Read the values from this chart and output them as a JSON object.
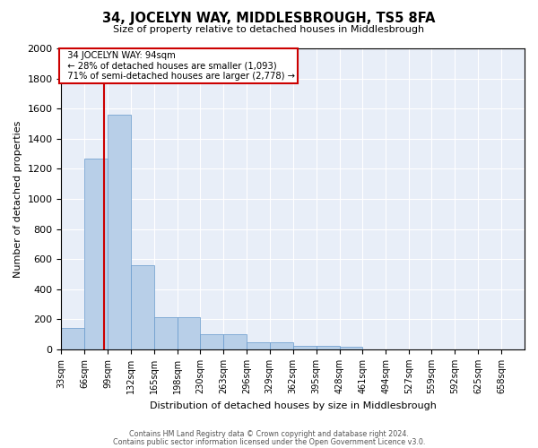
{
  "title": "34, JOCELYN WAY, MIDDLESBROUGH, TS5 8FA",
  "subtitle": "Size of property relative to detached houses in Middlesbrough",
  "xlabel": "Distribution of detached houses by size in Middlesbrough",
  "ylabel": "Number of detached properties",
  "footnote1": "Contains HM Land Registry data © Crown copyright and database right 2024.",
  "footnote2": "Contains public sector information licensed under the Open Government Licence v3.0.",
  "property_size": 94,
  "property_label": "34 JOCELYN WAY: 94sqm",
  "annotation_line1": "← 28% of detached houses are smaller (1,093)",
  "annotation_line2": "71% of semi-detached houses are larger (2,778) →",
  "bin_edges": [
    33,
    66,
    99,
    132,
    165,
    198,
    230,
    263,
    296,
    329,
    362,
    395,
    428,
    461,
    494,
    527,
    559,
    592,
    625,
    658,
    691
  ],
  "bar_heights": [
    140,
    1270,
    1560,
    560,
    215,
    215,
    100,
    100,
    50,
    50,
    25,
    25,
    20,
    0,
    0,
    0,
    0,
    0,
    0,
    0
  ],
  "bar_color": "#b8cfe8",
  "bar_edge_color": "#6699cc",
  "background_color": "#e8eef8",
  "red_line_color": "#cc0000",
  "annotation_box_color": "#cc0000",
  "ylim": [
    0,
    2000
  ],
  "yticks": [
    0,
    200,
    400,
    600,
    800,
    1000,
    1200,
    1400,
    1600,
    1800,
    2000
  ]
}
